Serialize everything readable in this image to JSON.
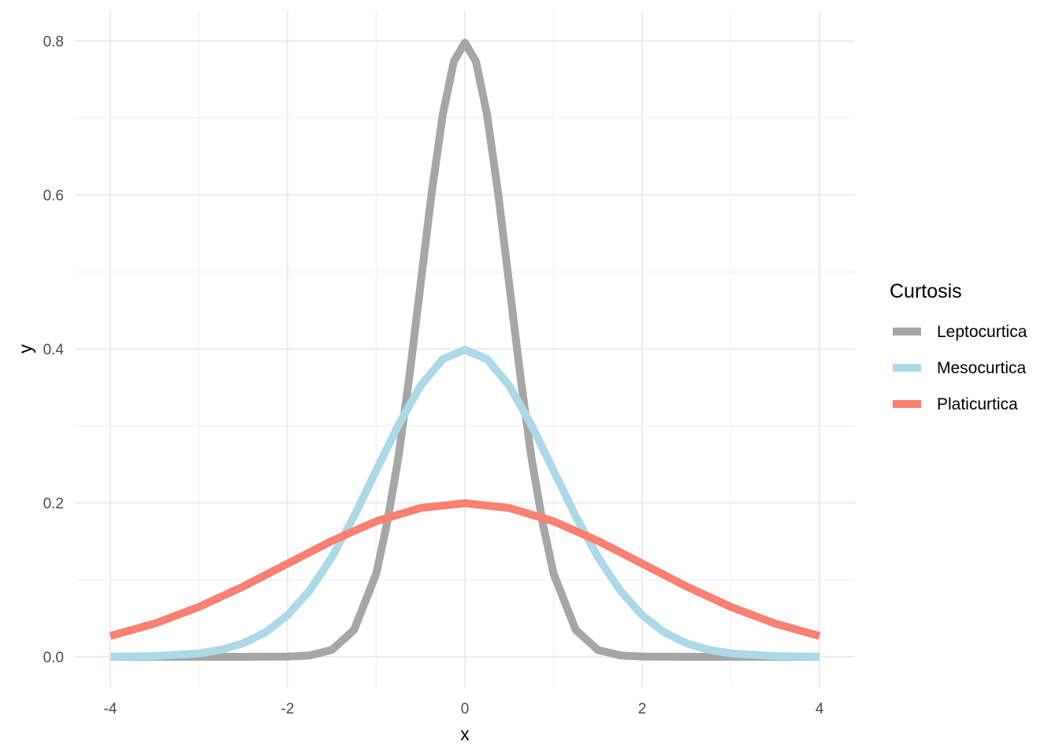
{
  "chart_data": {
    "type": "line",
    "xlabel": "x",
    "ylabel": "y",
    "xlim": [
      -4,
      4
    ],
    "ylim": [
      0,
      0.8
    ],
    "x_ticks": [
      -4,
      -2,
      0,
      2,
      4
    ],
    "x_tick_labels": [
      "-4",
      "-2",
      "0",
      "2",
      "4"
    ],
    "y_ticks": [
      0.0,
      0.2,
      0.4,
      0.6,
      0.8
    ],
    "y_tick_labels": [
      "0.0",
      "0.2",
      "0.4",
      "0.6",
      "0.8"
    ],
    "grid": true,
    "legend": {
      "title": "Curtosis",
      "placement": "right"
    },
    "series": [
      {
        "name": "Leptocurtica",
        "color": "#a6a6a6",
        "distribution": "normal",
        "mean": 0,
        "sd": 0.5,
        "x": [
          -4,
          -3.5,
          -3,
          -2.5,
          -2,
          -1.75,
          -1.5,
          -1.25,
          -1,
          -0.875,
          -0.75,
          -0.625,
          -0.5,
          -0.375,
          -0.25,
          -0.125,
          0,
          0.125,
          0.25,
          0.375,
          0.5,
          0.625,
          0.75,
          0.875,
          1,
          1.25,
          1.5,
          1.75,
          2,
          2.5,
          3,
          3.5,
          4
        ],
        "y": [
          0,
          0,
          0,
          0,
          0.0003,
          0.0018,
          0.0089,
          0.035,
          0.108,
          0.1753,
          0.259,
          0.3654,
          0.4839,
          0.6023,
          0.7041,
          0.7733,
          0.7979,
          0.7733,
          0.7041,
          0.6023,
          0.4839,
          0.3654,
          0.259,
          0.1753,
          0.108,
          0.035,
          0.0089,
          0.0018,
          0.0003,
          0,
          0,
          0,
          0
        ]
      },
      {
        "name": "Mesocurtica",
        "color": "#add8e6",
        "distribution": "normal",
        "mean": 0,
        "sd": 1,
        "x": [
          -4,
          -3.5,
          -3,
          -2.75,
          -2.5,
          -2.25,
          -2,
          -1.75,
          -1.5,
          -1.25,
          -1,
          -0.75,
          -0.5,
          -0.25,
          0,
          0.25,
          0.5,
          0.75,
          1,
          1.25,
          1.5,
          1.75,
          2,
          2.25,
          2.5,
          2.75,
          3,
          3.5,
          4
        ],
        "y": [
          0.0001,
          0.0009,
          0.0044,
          0.0091,
          0.0175,
          0.0317,
          0.054,
          0.0863,
          0.1295,
          0.1826,
          0.242,
          0.3011,
          0.3521,
          0.3867,
          0.3989,
          0.3867,
          0.3521,
          0.3011,
          0.242,
          0.1826,
          0.1295,
          0.0863,
          0.054,
          0.0317,
          0.0175,
          0.0091,
          0.0044,
          0.0009,
          0.0001
        ]
      },
      {
        "name": "Platicurtica",
        "color": "#fa8072",
        "distribution": "normal",
        "mean": 0,
        "sd": 2,
        "x": [
          -4,
          -3.5,
          -3,
          -2.5,
          -2,
          -1.5,
          -1,
          -0.5,
          0,
          0.5,
          1,
          1.5,
          2,
          2.5,
          3,
          3.5,
          4
        ],
        "y": [
          0.027,
          0.0431,
          0.0648,
          0.0913,
          0.121,
          0.1506,
          0.176,
          0.1933,
          0.1995,
          0.1933,
          0.176,
          0.1506,
          0.121,
          0.0913,
          0.0648,
          0.0431,
          0.027
        ]
      }
    ]
  }
}
